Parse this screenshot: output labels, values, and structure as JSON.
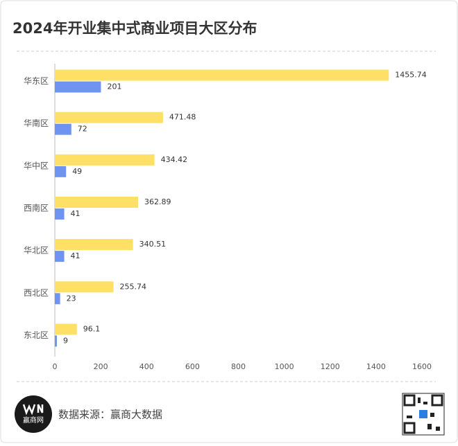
{
  "chart_data": {
    "type": "hbar",
    "title": "2024年开业集中式商业项目大区分布",
    "categories": [
      "华东区",
      "华南区",
      "华中区",
      "西南区",
      "华北区",
      "西北区",
      "东北区"
    ],
    "series": [
      {
        "color": "#ffe066",
        "values": [
          1455.74,
          471.48,
          434.42,
          362.89,
          340.51,
          255.74,
          96.1
        ]
      },
      {
        "color": "#6f93f0",
        "values": [
          201,
          72,
          49,
          41,
          41,
          23,
          9
        ]
      }
    ],
    "xlim": [
      0,
      1600
    ],
    "xticks": [
      0,
      200,
      400,
      600,
      800,
      1000,
      1200,
      1400,
      1600
    ],
    "grid": false
  },
  "footer": {
    "source": "数据来源：赢商大数据",
    "logo": "赢商网"
  }
}
